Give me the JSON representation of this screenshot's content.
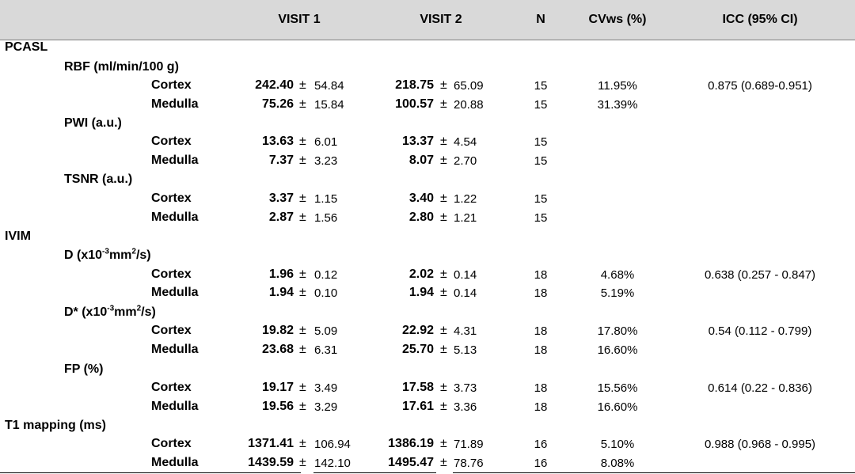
{
  "header": {
    "visit1": "VISIT 1",
    "visit2": "VISIT 2",
    "n": "N",
    "cvws": "CVws (%)",
    "icc": "ICC (95% CI)"
  },
  "pm_symbol": "±",
  "sections": {
    "pcasl": "PCASL",
    "ivim": "IVIM",
    "t1": "T1 mapping (ms)"
  },
  "params": {
    "rbf": "RBF (ml/min/100 g)",
    "pwi": "PWI (a.u.)",
    "tsnr": "TSNR  (a.u.)",
    "d_a": "D (x10",
    "d_b": "-3",
    "d_c": "mm",
    "d_d": "2",
    "d_e": "/s)",
    "dstar_a": "D* (x10",
    "dstar_b": "-3",
    "dstar_c": "mm",
    "dstar_d": "2",
    "dstar_e": "/s)",
    "fp": "FP (%)"
  },
  "rows": {
    "rbf_cortex": {
      "region": "Cortex",
      "v1": "242.40",
      "v1sd": "54.84",
      "v2": "218.75",
      "v2sd": "65.09",
      "n": "15",
      "cv": "11.95%",
      "icc": "0.875 (0.689-0.951)"
    },
    "rbf_medulla": {
      "region": "Medulla",
      "v1": "75.26",
      "v1sd": "15.84",
      "v2": "100.57",
      "v2sd": "20.88",
      "n": "15",
      "cv": "31.39%",
      "icc": ""
    },
    "pwi_cortex": {
      "region": "Cortex",
      "v1": "13.63",
      "v1sd": "6.01",
      "v2": "13.37",
      "v2sd": "4.54",
      "n": "15",
      "cv": "",
      "icc": ""
    },
    "pwi_medulla": {
      "region": "Medulla",
      "v1": "7.37",
      "v1sd": "3.23",
      "v2": "8.07",
      "v2sd": "2.70",
      "n": "15",
      "cv": "",
      "icc": ""
    },
    "tsnr_cortex": {
      "region": "Cortex",
      "v1": "3.37",
      "v1sd": "1.15",
      "v2": "3.40",
      "v2sd": "1.22",
      "n": "15",
      "cv": "",
      "icc": ""
    },
    "tsnr_medulla": {
      "region": "Medulla",
      "v1": "2.87",
      "v1sd": "1.56",
      "v2": "2.80",
      "v2sd": "1.21",
      "n": "15",
      "cv": "",
      "icc": ""
    },
    "d_cortex": {
      "region": "Cortex",
      "v1": "1.96",
      "v1sd": "0.12",
      "v2": "2.02",
      "v2sd": "0.14",
      "n": "18",
      "cv": "4.68%",
      "icc": "0.638 (0.257 - 0.847)"
    },
    "d_medulla": {
      "region": "Medulla",
      "v1": "1.94",
      "v1sd": "0.10",
      "v2": "1.94",
      "v2sd": "0.14",
      "n": "18",
      "cv": "5.19%",
      "icc": ""
    },
    "ds_cortex": {
      "region": "Cortex",
      "v1": "19.82",
      "v1sd": "5.09",
      "v2": "22.92",
      "v2sd": "4.31",
      "n": "18",
      "cv": "17.80%",
      "icc": "0.54 (0.112 - 0.799)"
    },
    "ds_medulla": {
      "region": "Medulla",
      "v1": "23.68",
      "v1sd": "6.31",
      "v2": "25.70",
      "v2sd": "5.13",
      "n": "18",
      "cv": "16.60%",
      "icc": ""
    },
    "fp_cortex": {
      "region": "Cortex",
      "v1": "19.17",
      "v1sd": "3.49",
      "v2": "17.58",
      "v2sd": "3.73",
      "n": "18",
      "cv": "15.56%",
      "icc": "0.614 (0.22 - 0.836)"
    },
    "fp_medulla": {
      "region": "Medulla",
      "v1": "19.56",
      "v1sd": "3.29",
      "v2": "17.61",
      "v2sd": "3.36",
      "n": "18",
      "cv": "16.60%",
      "icc": ""
    },
    "t1_cortex": {
      "region": "Cortex",
      "v1": "1371.41",
      "v1sd": "106.94",
      "v2": "1386.19",
      "v2sd": "71.89",
      "n": "16",
      "cv": "5.10%",
      "icc": "0.988 (0.968 - 0.995)"
    },
    "t1_medulla": {
      "region": "Medulla",
      "v1": "1439.59",
      "v1sd": "142.10",
      "v2": "1495.47",
      "v2sd": "78.76",
      "n": "16",
      "cv": "8.08%",
      "icc": ""
    }
  }
}
